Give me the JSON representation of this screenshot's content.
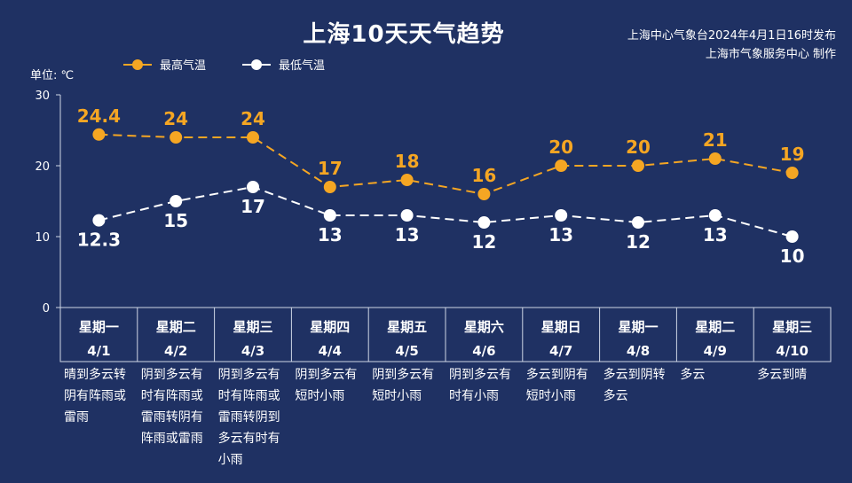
{
  "title": "上海10天天气趋势",
  "publisher": {
    "line1": "上海中心气象台2024年4月1日16时发布",
    "line2": "上海市气象服务中心 制作"
  },
  "unit_label": "单位: ℃",
  "colors": {
    "background": "#1f3163",
    "high": "#f5a623",
    "low": "#ffffff",
    "grid": "#cfd6e6"
  },
  "chart_data": {
    "type": "line",
    "title": "上海10天天气趋势",
    "ylabel": "单位: ℃",
    "ylim": [
      0,
      30
    ],
    "yticks": [
      0,
      10,
      20,
      30
    ],
    "legend_position": "top-left",
    "categories": [
      {
        "weekday": "星期一",
        "date": "4/1"
      },
      {
        "weekday": "星期二",
        "date": "4/2"
      },
      {
        "weekday": "星期三",
        "date": "4/3"
      },
      {
        "weekday": "星期四",
        "date": "4/4"
      },
      {
        "weekday": "星期五",
        "date": "4/5"
      },
      {
        "weekday": "星期六",
        "date": "4/6"
      },
      {
        "weekday": "星期日",
        "date": "4/7"
      },
      {
        "weekday": "星期一",
        "date": "4/8"
      },
      {
        "weekday": "星期二",
        "date": "4/9"
      },
      {
        "weekday": "星期三",
        "date": "4/10"
      }
    ],
    "series": [
      {
        "name": "最高气温",
        "color": "#f5a623",
        "values": [
          24.4,
          24,
          24,
          17,
          18,
          16,
          20,
          20,
          21,
          19
        ]
      },
      {
        "name": "最低气温",
        "color": "#ffffff",
        "values": [
          12.3,
          15,
          17,
          13,
          13,
          12,
          13,
          12,
          13,
          10
        ]
      }
    ],
    "weather": [
      [
        "晴到多云转",
        "阴有阵雨或",
        "雷雨"
      ],
      [
        "阴到多云有",
        "时有阵雨或",
        "雷雨转阴有",
        "阵雨或雷雨"
      ],
      [
        "阴到多云有",
        "时有阵雨或",
        "雷雨转阴到",
        "多云有时有",
        "小雨"
      ],
      [
        "阴到多云有",
        "短时小雨"
      ],
      [
        "阴到多云有",
        "短时小雨"
      ],
      [
        "阴到多云有",
        "时有小雨"
      ],
      [
        "多云到阴有",
        "短时小雨"
      ],
      [
        "多云到阴转",
        "多云"
      ],
      [
        "多云"
      ],
      [
        "多云到晴"
      ]
    ]
  }
}
